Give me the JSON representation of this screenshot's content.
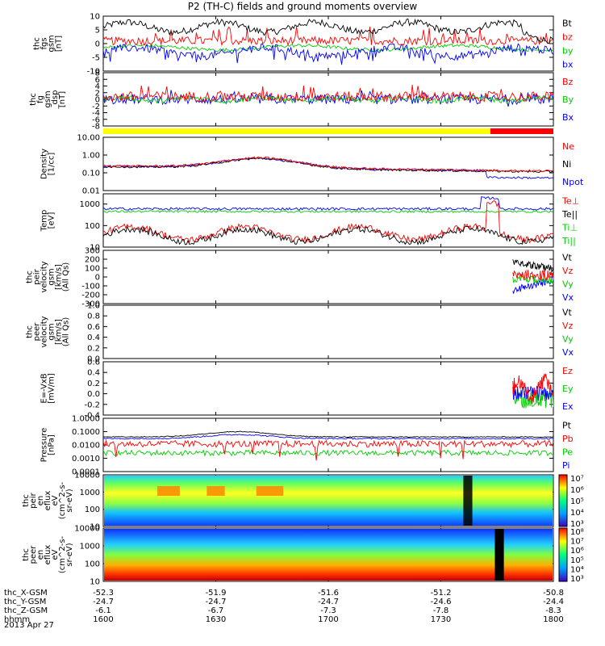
{
  "title": "P2 (TH-C) fields and ground moments overview",
  "colors": {
    "black": "#000000",
    "red": "#ff0000",
    "green": "#00cc00",
    "blue": "#0000ff"
  },
  "chart_data": {
    "type": "line",
    "x_range": [
      1600,
      1800
    ],
    "x_ticks": [
      "1600",
      "1630",
      "1700",
      "1730",
      "1800"
    ],
    "panels": [
      {
        "ylabel": [
          "thc",
          "fgs",
          "gsm",
          "[nT]"
        ],
        "yscale": "linear",
        "ylim": [
          -10,
          10
        ],
        "yticks": [
          "10",
          "5",
          "0",
          "-5",
          "-10"
        ],
        "yticks_at": [
          10,
          5,
          0,
          -5,
          -10
        ],
        "legend": [
          {
            "t": "Bt",
            "c": "black"
          },
          {
            "t": "bz",
            "c": "red"
          },
          {
            "t": "by",
            "c": "green"
          },
          {
            "t": "bx",
            "c": "blue"
          }
        ]
      },
      {
        "ylabel": [
          "thc",
          "fg",
          "gsm",
          "_dsp",
          "[nT]"
        ],
        "yscale": "linear",
        "ylim": [
          -8,
          8
        ],
        "yticks": [
          "8",
          "6",
          "4",
          "2",
          "0",
          "-2",
          "-4",
          "-6",
          "-8"
        ],
        "yticks_at": [
          8,
          6,
          4,
          2,
          0,
          -2,
          -4,
          -6,
          -8
        ],
        "legend": [
          {
            "t": "Bz",
            "c": "red"
          },
          {
            "t": "By",
            "c": "green"
          },
          {
            "t": "Bx",
            "c": "blue"
          }
        ]
      },
      {
        "ylabel": [
          "Density",
          "[1/cc]"
        ],
        "yscale": "log",
        "ylim": [
          0.01,
          10
        ],
        "yticks": [
          "10.00",
          "1.00",
          "0.10",
          "0.01"
        ],
        "yticks_at": [
          10,
          1,
          0.1,
          0.01
        ],
        "legend": [
          {
            "t": "Ne",
            "c": "red"
          },
          {
            "t": "Ni",
            "c": "black"
          },
          {
            "t": "Npot",
            "c": "blue"
          }
        ]
      },
      {
        "ylabel": [
          "Temp",
          "[eV]"
        ],
        "yscale": "log",
        "ylim": [
          10,
          3000
        ],
        "yticks": [
          "1000",
          "100",
          "10"
        ],
        "yticks_at": [
          1000,
          100,
          10
        ],
        "legend": [
          {
            "t": "Te⊥",
            "c": "red"
          },
          {
            "t": "Te||",
            "c": "black"
          },
          {
            "t": "Ti⊥",
            "c": "green"
          },
          {
            "t": "Ti||",
            "c": "green"
          }
        ]
      },
      {
        "ylabel": [
          "thc",
          "peir",
          "velocity",
          "gsm",
          "[km/s]",
          "(All Qs)"
        ],
        "yscale": "linear",
        "ylim": [
          -300,
          300
        ],
        "yticks": [
          "300",
          "200",
          "100",
          "0",
          "-100",
          "-200",
          "-300"
        ],
        "yticks_at": [
          300,
          200,
          100,
          0,
          -100,
          -200,
          -300
        ],
        "legend": [
          {
            "t": "Vt",
            "c": "black"
          },
          {
            "t": "Vz",
            "c": "red"
          },
          {
            "t": "Vy",
            "c": "green"
          },
          {
            "t": "Vx",
            "c": "blue"
          }
        ]
      },
      {
        "ylabel": [
          "thc",
          "peer",
          "velocity",
          "gsm",
          "[km/s]",
          "(All Qs)"
        ],
        "yscale": "linear",
        "ylim": [
          0,
          1
        ],
        "yticks": [
          "1.0",
          "0.8",
          "0.6",
          "0.4",
          "0.2",
          "0.0"
        ],
        "yticks_at": [
          1.0,
          0.8,
          0.6,
          0.4,
          0.2,
          0.0
        ],
        "legend": [
          {
            "t": "Vt",
            "c": "black"
          },
          {
            "t": "Vz",
            "c": "red"
          },
          {
            "t": "Vy",
            "c": "green"
          },
          {
            "t": "Vx",
            "c": "blue"
          }
        ]
      },
      {
        "ylabel": [
          "E=-VxB",
          "[mV/m]"
        ],
        "yscale": "linear",
        "ylim": [
          -0.4,
          0.6
        ],
        "yticks": [
          "0.6",
          "0.4",
          "0.2",
          "0.0",
          "-0.2",
          "-0.4"
        ],
        "yticks_at": [
          0.6,
          0.4,
          0.2,
          0.0,
          -0.2,
          -0.4
        ],
        "legend": [
          {
            "t": "Ez",
            "c": "red"
          },
          {
            "t": "Ey",
            "c": "green"
          },
          {
            "t": "Ex",
            "c": "blue"
          }
        ]
      },
      {
        "ylabel": [
          "Pressure",
          "[nPa]"
        ],
        "yscale": "log",
        "ylim": [
          0.0001,
          1
        ],
        "yticks": [
          "1.0000",
          "0.1000",
          "0.0100",
          "0.0010",
          "0.0001"
        ],
        "yticks_at": [
          1,
          0.1,
          0.01,
          0.001,
          0.0001
        ],
        "legend": [
          {
            "t": "Pt",
            "c": "black"
          },
          {
            "t": "Pb",
            "c": "red"
          },
          {
            "t": "Pe",
            "c": "green"
          },
          {
            "t": "Pi",
            "c": "blue"
          }
        ]
      },
      {
        "ylabel": [
          "thc",
          "peir",
          "en",
          "eflux",
          "eV",
          "(cm^2-s-",
          "sr-eV)"
        ],
        "yscale": "log",
        "ylim": [
          10,
          10000
        ],
        "yticks": [
          "10000",
          "1000",
          "100",
          "10"
        ],
        "yticks_at": [
          10000,
          1000,
          100,
          10
        ],
        "colorbar": [
          "10⁷",
          "10⁶",
          "10⁵",
          "10⁴",
          "10³"
        ]
      },
      {
        "ylabel": [
          "thc",
          "peer",
          "en",
          "eflux",
          "eV",
          "(cm^2-s-",
          "sr-eV)"
        ],
        "yscale": "log",
        "ylim": [
          10,
          10000
        ],
        "yticks": [
          "10000",
          "1000",
          "100",
          "10"
        ],
        "yticks_at": [
          10000,
          1000,
          100,
          10
        ],
        "colorbar": [
          "10⁸",
          "10⁷",
          "10⁶",
          "10⁵",
          "10⁴",
          "10³"
        ]
      }
    ],
    "ephemeris": {
      "labels": [
        "thc_X-GSM",
        "thc_Y-GSM",
        "thc_Z-GSM",
        "hhmm",
        "2013 Apr 27"
      ],
      "rows": [
        [
          "-52.3",
          "-51.9",
          "-51.6",
          "-51.2",
          "-50.8"
        ],
        [
          "-24.7",
          "-24.7",
          "-24.7",
          "-24.6",
          "-24.4"
        ],
        [
          "-6.1",
          "-6.7",
          "-7.3",
          "-7.8",
          "-8.3"
        ],
        [
          "1600",
          "1630",
          "1700",
          "1730",
          "1800"
        ]
      ]
    }
  }
}
